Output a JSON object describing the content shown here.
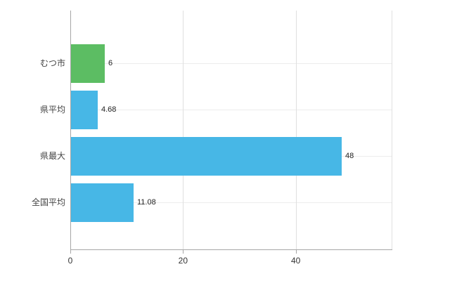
{
  "chart_data": {
    "type": "bar",
    "orientation": "horizontal",
    "title": "",
    "categories": [
      "むつ市",
      "県平均",
      "県最大",
      "全国平均"
    ],
    "values": [
      6,
      4.68,
      48,
      11.08
    ],
    "value_labels": [
      "6",
      "4.68",
      "48",
      "11.08"
    ],
    "bar_colors": [
      "#5cbd63",
      "#47b7e6",
      "#47b7e6",
      "#47b7e6"
    ],
    "x_ticks": [
      0,
      20,
      40
    ],
    "x_tick_labels": [
      "0",
      "20",
      "40"
    ],
    "xlim": [
      0,
      57
    ],
    "grid": "on",
    "legend": "none",
    "background_color": "#ffffff",
    "axis_color": "#a6a6a6"
  }
}
